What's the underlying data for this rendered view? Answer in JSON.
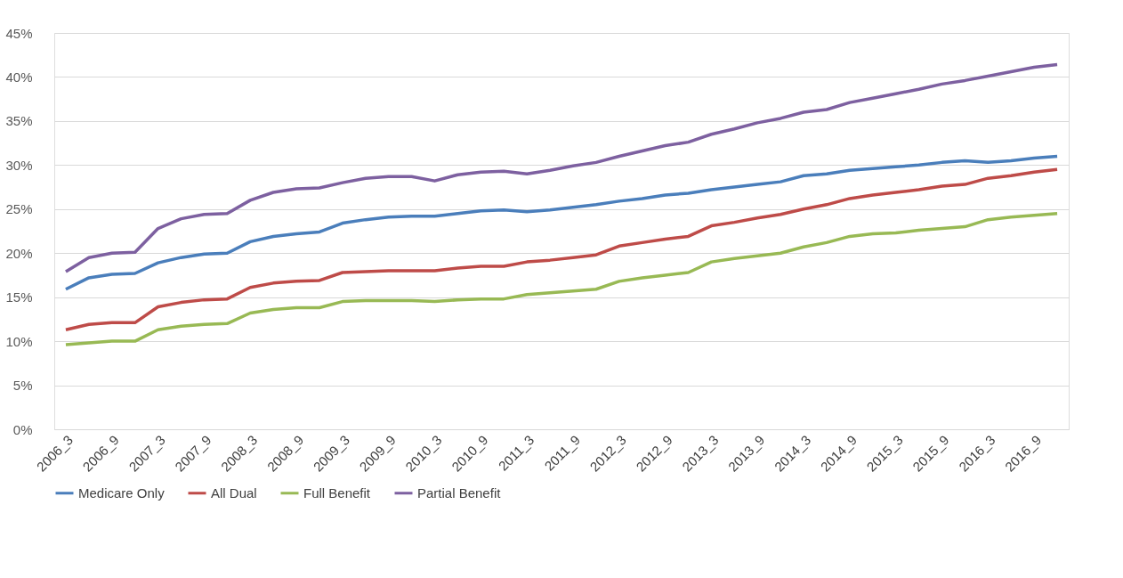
{
  "chart_data": {
    "type": "line",
    "categories": [
      "2006_3",
      null,
      "2006_9",
      null,
      "2007_3",
      null,
      "2007_9",
      null,
      "2008_3",
      null,
      "2008_9",
      null,
      "2009_3",
      null,
      "2009_9",
      null,
      "2010_3",
      null,
      "2010_9",
      null,
      "2011_3",
      null,
      "2011_9",
      null,
      "2012_3",
      null,
      "2012_9",
      null,
      "2013_3",
      null,
      "2013_9",
      null,
      "2014_3",
      null,
      "2014_9",
      null,
      "2015_3",
      null,
      "2015_9",
      null,
      "2016_3",
      null,
      "2016_9",
      null
    ],
    "series": [
      {
        "name": "Medicare Only",
        "color": "#4a7ebb",
        "values": [
          15.9,
          17.2,
          17.6,
          17.7,
          18.9,
          19.5,
          19.9,
          20.0,
          21.3,
          21.9,
          22.2,
          22.4,
          23.4,
          23.8,
          24.1,
          24.2,
          24.2,
          24.5,
          24.8,
          24.9,
          24.7,
          24.9,
          25.2,
          25.5,
          25.9,
          26.2,
          26.6,
          26.8,
          27.2,
          27.5,
          27.8,
          28.1,
          28.8,
          29.0,
          29.4,
          29.6,
          29.8,
          30.0,
          30.3,
          30.5,
          30.3,
          30.5,
          30.8,
          31.0
        ]
      },
      {
        "name": "All Dual",
        "color": "#be4b48",
        "values": [
          11.3,
          11.9,
          12.1,
          12.1,
          13.9,
          14.4,
          14.7,
          14.8,
          16.1,
          16.6,
          16.8,
          16.9,
          17.8,
          17.9,
          18.0,
          18.0,
          18.0,
          18.3,
          18.5,
          18.5,
          19.0,
          19.2,
          19.5,
          19.8,
          20.8,
          21.2,
          21.6,
          21.9,
          23.1,
          23.5,
          24.0,
          24.4,
          25.0,
          25.5,
          26.2,
          26.6,
          26.9,
          27.2,
          27.6,
          27.8,
          28.5,
          28.8,
          29.2,
          29.5
        ]
      },
      {
        "name": "Full Benefit",
        "color": "#98b954",
        "values": [
          9.6,
          9.8,
          10.0,
          10.0,
          11.3,
          11.7,
          11.9,
          12.0,
          13.2,
          13.6,
          13.8,
          13.8,
          14.5,
          14.6,
          14.6,
          14.6,
          14.5,
          14.7,
          14.8,
          14.8,
          15.3,
          15.5,
          15.7,
          15.9,
          16.8,
          17.2,
          17.5,
          17.8,
          19.0,
          19.4,
          19.7,
          20.0,
          20.7,
          21.2,
          21.9,
          22.2,
          22.3,
          22.6,
          22.8,
          23.0,
          23.8,
          24.1,
          24.3,
          24.5
        ]
      },
      {
        "name": "Partial Benefit",
        "color": "#7d60a0",
        "values": [
          17.9,
          19.5,
          20.0,
          20.1,
          22.8,
          23.9,
          24.4,
          24.5,
          26.0,
          26.9,
          27.3,
          27.4,
          28.0,
          28.5,
          28.7,
          28.7,
          28.2,
          28.9,
          29.2,
          29.3,
          29.0,
          29.4,
          29.9,
          30.3,
          31.0,
          31.6,
          32.2,
          32.6,
          33.5,
          34.1,
          34.8,
          35.3,
          36.0,
          36.3,
          37.1,
          37.6,
          38.1,
          38.6,
          39.2,
          39.6,
          40.1,
          40.6,
          41.1,
          41.4
        ]
      }
    ],
    "ylim": [
      0,
      45
    ],
    "yticks": [
      {
        "value": 0,
        "label": "0%"
      },
      {
        "value": 5,
        "label": "5%"
      },
      {
        "value": 10,
        "label": "10%"
      },
      {
        "value": 15,
        "label": "15%"
      },
      {
        "value": 20,
        "label": "20%"
      },
      {
        "value": 25,
        "label": "25%"
      },
      {
        "value": 30,
        "label": "30%"
      },
      {
        "value": 35,
        "label": "35%"
      },
      {
        "value": 40,
        "label": "40%"
      },
      {
        "value": 45,
        "label": "45%"
      }
    ],
    "grid": "y",
    "legend": "bottom",
    "line_style": "solid",
    "marker": "none"
  }
}
